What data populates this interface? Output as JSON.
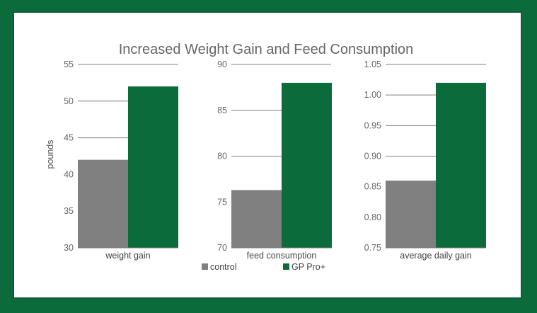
{
  "chart_data": {
    "type": "bar",
    "title": "Increased Weight Gain and Feed Consumption",
    "ylabel": "pounds",
    "series_names": [
      "control",
      "GP Pro+"
    ],
    "colors": {
      "control": "#808080",
      "GP Pro+": "#0b6b3a"
    },
    "legend_position": "bottom-center",
    "grid": true,
    "panels": [
      {
        "category": "weight gain",
        "ylim": [
          30,
          55
        ],
        "ticks": [
          30,
          35,
          40,
          45,
          50,
          55
        ],
        "tick_labels": [
          "30",
          "35",
          "40",
          "45",
          "50",
          "55"
        ],
        "values": {
          "control": 42,
          "GP Pro+": 52
        }
      },
      {
        "category": "feed consumption",
        "ylim": [
          70,
          90
        ],
        "ticks": [
          70,
          75,
          80,
          85,
          90
        ],
        "tick_labels": [
          "70",
          "75",
          "80",
          "85",
          "90"
        ],
        "values": {
          "control": 76.3,
          "GP Pro+": 88
        }
      },
      {
        "category": "average daily gain",
        "ylim": [
          0.75,
          1.05
        ],
        "ticks": [
          0.75,
          0.8,
          0.85,
          0.9,
          0.95,
          1.0,
          1.05
        ],
        "tick_labels": [
          "0.75",
          "0.80",
          "0.85",
          "0.90",
          "0.95",
          "1.00",
          "1.05"
        ],
        "values": {
          "control": 0.86,
          "GP Pro+": 1.02
        }
      }
    ]
  }
}
